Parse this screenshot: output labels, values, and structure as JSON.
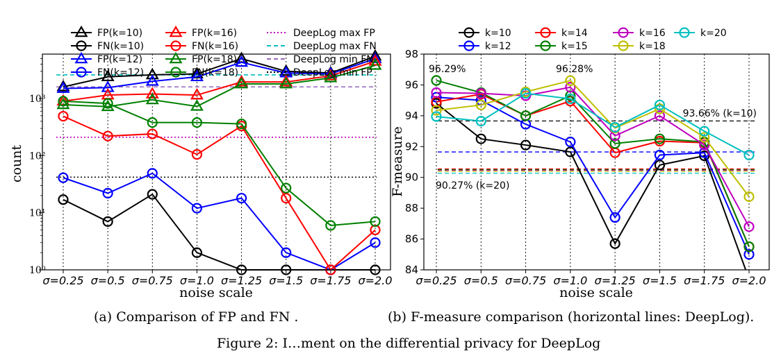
{
  "colors": {
    "k10": "#000000",
    "k12": "#0000ff",
    "k14": "#ff0000",
    "k15": "#008000",
    "k16": "#bf00bf",
    "k18": "#bfbf00",
    "k20": "#00bfbf",
    "deeplog_max_fp": "#bf00bf",
    "deeplog_max_fn": "#00bfbf",
    "deeplog_min_fn": "#9467bd",
    "deeplog_min_fp": "#000000"
  },
  "captions": {
    "a": "(a) Comparison of FP and FN .",
    "b": "(b) F-measure comparison (horizontal lines: DeepLog).",
    "figure": "Figure 2: I…ment on the differential privacy for DeepLog"
  },
  "chart_data": [
    {
      "type": "line",
      "panel": "a",
      "xlabel": "noise scale",
      "ylabel": "count",
      "yscale": "log",
      "ylim": [
        1,
        6000
      ],
      "categories": [
        "σ=0.25",
        "σ=0.5",
        "σ=0.75",
        "σ=1.0",
        "σ=1.25",
        "σ=1.5",
        "σ=1.75",
        "σ=2.0"
      ],
      "y_ticks": [
        "10⁰",
        "10¹",
        "10²",
        "10³"
      ],
      "legend_position": "top",
      "grid": "vertical dotted",
      "series": [
        {
          "name": "FP(k=10)",
          "marker": "triangle",
          "color_key": "k10",
          "values": [
            1600,
            2400,
            2600,
            2700,
            5000,
            3000,
            2800,
            5500
          ]
        },
        {
          "name": "FN(k=10)",
          "marker": "circle",
          "color_key": "k10",
          "values": [
            17,
            7,
            21,
            2,
            1,
            1,
            1,
            1
          ]
        },
        {
          "name": "FP(k=12)",
          "marker": "triangle",
          "color_key": "k12",
          "values": [
            1500,
            1550,
            2000,
            2400,
            4300,
            2800,
            2700,
            5000
          ]
        },
        {
          "name": "FN(k=12)",
          "marker": "circle",
          "color_key": "k12",
          "values": [
            41,
            22,
            49,
            12,
            18,
            2,
            1,
            3
          ]
        },
        {
          "name": "FP(k=16)",
          "marker": "triangle",
          "color_key": "k14",
          "values": [
            900,
            1150,
            1200,
            1150,
            1950,
            1950,
            2500,
            4500
          ]
        },
        {
          "name": "FN(k=16)",
          "marker": "circle",
          "color_key": "k14",
          "values": [
            490,
            220,
            240,
            105,
            330,
            18,
            1,
            5
          ]
        },
        {
          "name": "FP(k=18)",
          "marker": "triangle",
          "color_key": "k15",
          "values": [
            780,
            720,
            950,
            730,
            1800,
            1800,
            2300,
            3800
          ]
        },
        {
          "name": "FN(k=18)",
          "marker": "circle",
          "color_key": "k15",
          "values": [
            900,
            820,
            380,
            380,
            360,
            27,
            6,
            7
          ]
        }
      ],
      "reference_lines": [
        {
          "name": "DeepLog max FP",
          "value": 210,
          "style": "dotted",
          "color_key": "deeplog_max_fp"
        },
        {
          "name": "DeepLog max FN",
          "value": 2600,
          "style": "dashed",
          "color_key": "deeplog_max_fn"
        },
        {
          "name": "DeepLog min FN",
          "value": 1600,
          "style": "dashed",
          "color_key": "deeplog_min_fn"
        },
        {
          "name": "DeepLog min FP",
          "value": 42,
          "style": "dotted",
          "color_key": "deeplog_min_fp"
        }
      ]
    },
    {
      "type": "line",
      "panel": "b",
      "xlabel": "noise scale",
      "ylabel": "F-measure",
      "ylim": [
        84,
        98
      ],
      "categories": [
        "σ=0.25",
        "σ=0.5",
        "σ=0.75",
        "σ=1.0",
        "σ=1.25",
        "σ=1.5",
        "σ=1.75",
        "σ=2.0"
      ],
      "y_ticks": [
        84,
        86,
        88,
        90,
        92,
        94,
        96,
        98
      ],
      "legend_position": "top",
      "grid": "vertical dotted",
      "series": [
        {
          "name": "k=10",
          "color_key": "k10",
          "values": [
            94.8,
            92.5,
            92.1,
            91.65,
            85.7,
            90.8,
            91.4,
            83.4
          ]
        },
        {
          "name": "k=12",
          "color_key": "k12",
          "values": [
            95.2,
            95.0,
            93.45,
            92.3,
            87.4,
            91.45,
            91.6,
            85.0
          ]
        },
        {
          "name": "k=14",
          "color_key": "k14",
          "values": [
            94.9,
            95.4,
            94.0,
            94.95,
            91.6,
            92.35,
            92.25,
            85.5
          ]
        },
        {
          "name": "k=15",
          "color_key": "k15",
          "values": [
            96.29,
            95.5,
            94.0,
            95.3,
            92.2,
            92.5,
            92.3,
            85.5
          ]
        },
        {
          "name": "k=16",
          "color_key": "k16",
          "values": [
            95.5,
            95.45,
            95.3,
            95.85,
            92.7,
            94.0,
            92.1,
            86.8
          ]
        },
        {
          "name": "k=18",
          "color_key": "k18",
          "values": [
            94.35,
            94.7,
            95.55,
            96.28,
            93.2,
            94.45,
            92.6,
            88.75
          ]
        },
        {
          "name": "k=20",
          "color_key": "k20",
          "values": [
            93.95,
            93.65,
            95.45,
            95.1,
            93.25,
            94.7,
            93.0,
            91.45
          ]
        }
      ],
      "reference_lines": [
        {
          "value": 93.66,
          "color_key": "k10",
          "style": "dashed"
        },
        {
          "value": 91.65,
          "color_key": "k12",
          "style": "dashed"
        },
        {
          "value": 90.55,
          "color_key": "k14",
          "style": "dashed"
        },
        {
          "value": 90.5,
          "color_key": "k15",
          "style": "dashed"
        },
        {
          "value": 90.45,
          "color_key": "k16",
          "style": "dashed"
        },
        {
          "value": 90.4,
          "color_key": "k18",
          "style": "dashed"
        },
        {
          "value": 90.27,
          "color_key": "k20",
          "style": "dashed"
        }
      ],
      "annotations": [
        "96.29%",
        "96.28%",
        "93.66% (k=10)",
        "90.27% (k=20)"
      ]
    }
  ]
}
